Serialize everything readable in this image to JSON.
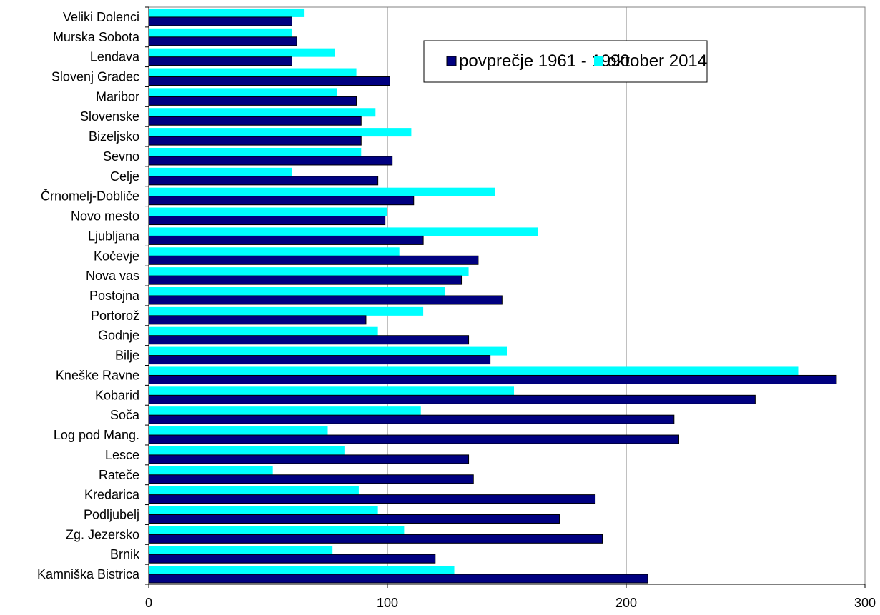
{
  "chart_data": {
    "type": "bar",
    "orientation": "horizontal",
    "categories": [
      "Veliki Dolenci",
      "Murska Sobota",
      "Lendava",
      "Slovenj Gradec",
      "Maribor",
      "Slovenske",
      "Bizeljsko",
      "Sevno",
      "Celje",
      "Črnomelj-Dobliče",
      "Novo mesto",
      "Ljubljana",
      "Kočevje",
      "Nova vas",
      "Postojna",
      "Portorož",
      "Godnje",
      "Bilje",
      "Kneške Ravne",
      "Kobarid",
      "Soča",
      "Log pod Mang.",
      "Lesce",
      "Rateče",
      "Kredarica",
      "Podljubelj",
      "Zg. Jezersko",
      "Brnik",
      "Kamniška Bistrica"
    ],
    "series": [
      {
        "name": "povprečje 1961 - 1990",
        "color": "#000080",
        "values": [
          60,
          62,
          60,
          101,
          87,
          89,
          89,
          102,
          96,
          111,
          99,
          115,
          138,
          131,
          148,
          91,
          134,
          143,
          288,
          254,
          220,
          222,
          134,
          136,
          187,
          172,
          190,
          120,
          209
        ]
      },
      {
        "name": "oktober 2014",
        "color": "#00ffff",
        "values": [
          65,
          60,
          78,
          87,
          79,
          95,
          110,
          89,
          60,
          145,
          100,
          163,
          105,
          134,
          124,
          115,
          96,
          150,
          272,
          153,
          114,
          75,
          82,
          52,
          88,
          96,
          107,
          77,
          128
        ]
      }
    ],
    "xlim": [
      0,
      300
    ],
    "xticks": [
      0,
      100,
      200,
      300
    ],
    "grid": "vertical",
    "legend_position": "top-right",
    "title": "",
    "xlabel": "",
    "ylabel": ""
  }
}
